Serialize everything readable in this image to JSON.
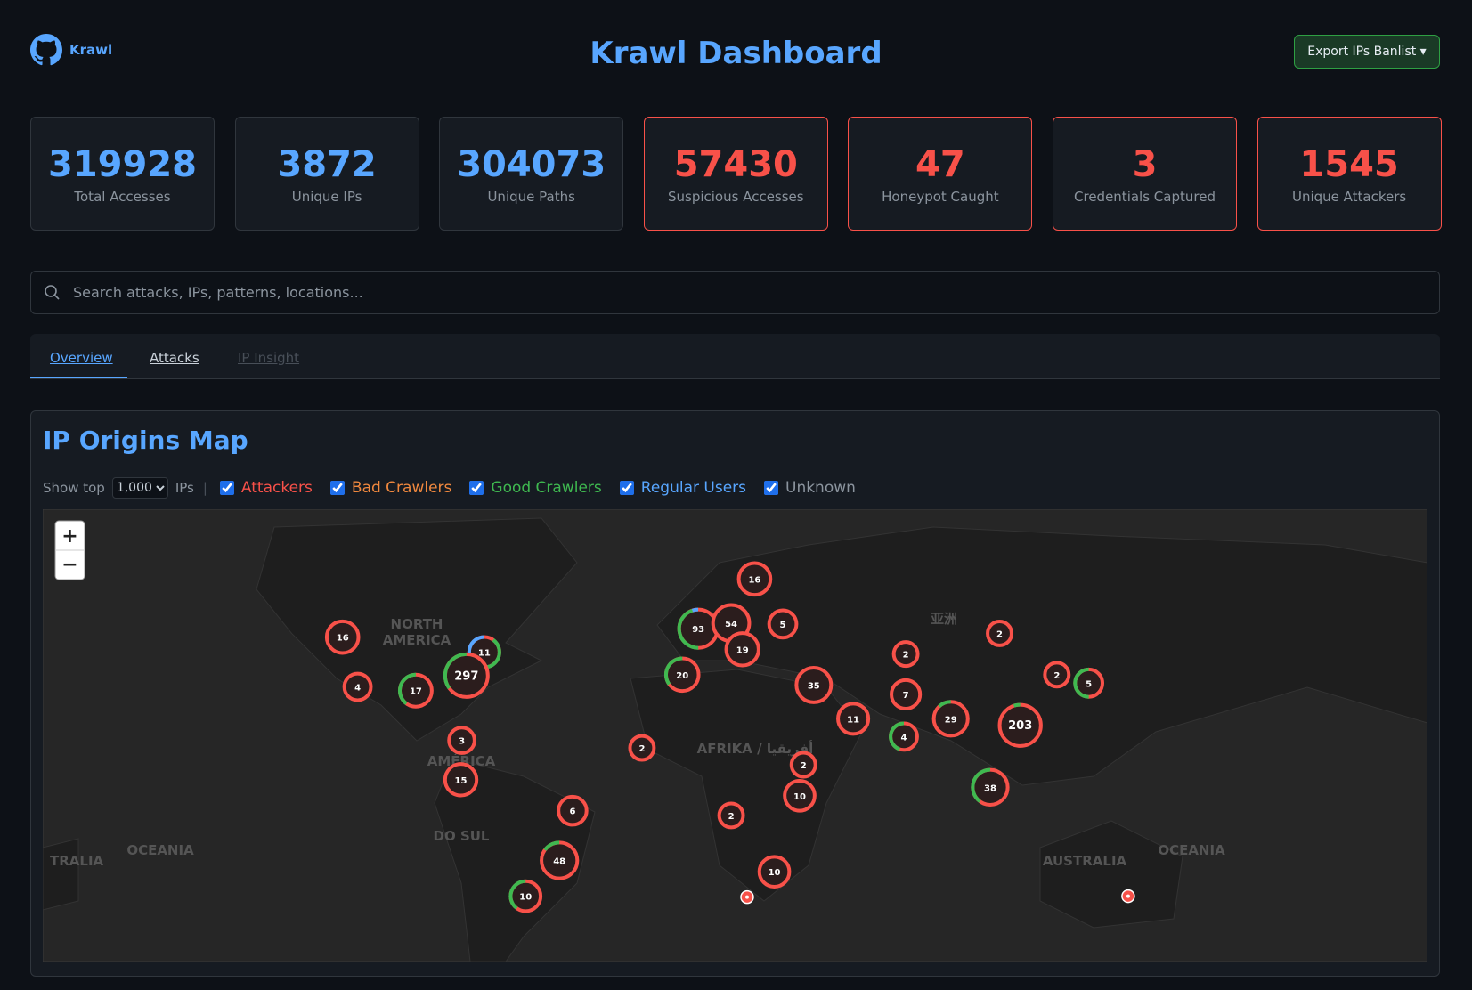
{
  "header": {
    "repo": "Krawl",
    "title": "Krawl Dashboard",
    "export": "Export IPs Banlist ▾"
  },
  "stats": [
    {
      "value": 319928,
      "label": "Total Accesses",
      "color": "#58a6ff"
    },
    {
      "value": 3872,
      "label": "Unique IPs",
      "color": "#58a6ff"
    },
    {
      "value": 304073,
      "label": "Unique Paths",
      "color": "#58a6ff"
    },
    {
      "value": 57430,
      "label": "Suspicious Accesses",
      "color": "#f85149"
    },
    {
      "value": 47,
      "label": "Honeypot Caught",
      "color": "#f85149"
    },
    {
      "value": 3,
      "label": "Credentials Captured",
      "color": "#f85149"
    },
    {
      "value": 1545,
      "label": "Unique Attackers",
      "color": "#f85149"
    }
  ],
  "search": {
    "placeholder": "Search attacks, IPs, patterns, locations..."
  },
  "tabs": [
    "Overview",
    "Attacks",
    "IP Insight"
  ],
  "map": {
    "title": "IP Origins Map",
    "show_top": "Show top",
    "top_value": "1,000",
    "ips": "IPs",
    "filters": [
      {
        "label": "Attackers",
        "color": "#f85149"
      },
      {
        "label": "Bad Crawlers",
        "color": "#f0883e"
      },
      {
        "label": "Good Crawlers",
        "color": "#3fb950"
      },
      {
        "label": "Regular Users",
        "color": "#58a6ff"
      },
      {
        "label": "Unknown",
        "color": "#8b949e"
      }
    ],
    "zoom_in": "+",
    "zoom_out": "−",
    "region_labels": [
      "NORTH",
      "AMERICA",
      "AMÉRICA",
      "DO SUL",
      "AFRIKA / أفريقيا",
      "亚洲",
      "AUSTRALIA",
      "OCEANIA",
      "OCEANIA",
      "TRALIA"
    ],
    "clusters": [
      16,
      93,
      54,
      5,
      19,
      16,
      11,
      297,
      4,
      17,
      20,
      35,
      2,
      2,
      7,
      11,
      4,
      29,
      203,
      2,
      5,
      3,
      2,
      15,
      2,
      10,
      38,
      6,
      2,
      48,
      10,
      10
    ]
  }
}
